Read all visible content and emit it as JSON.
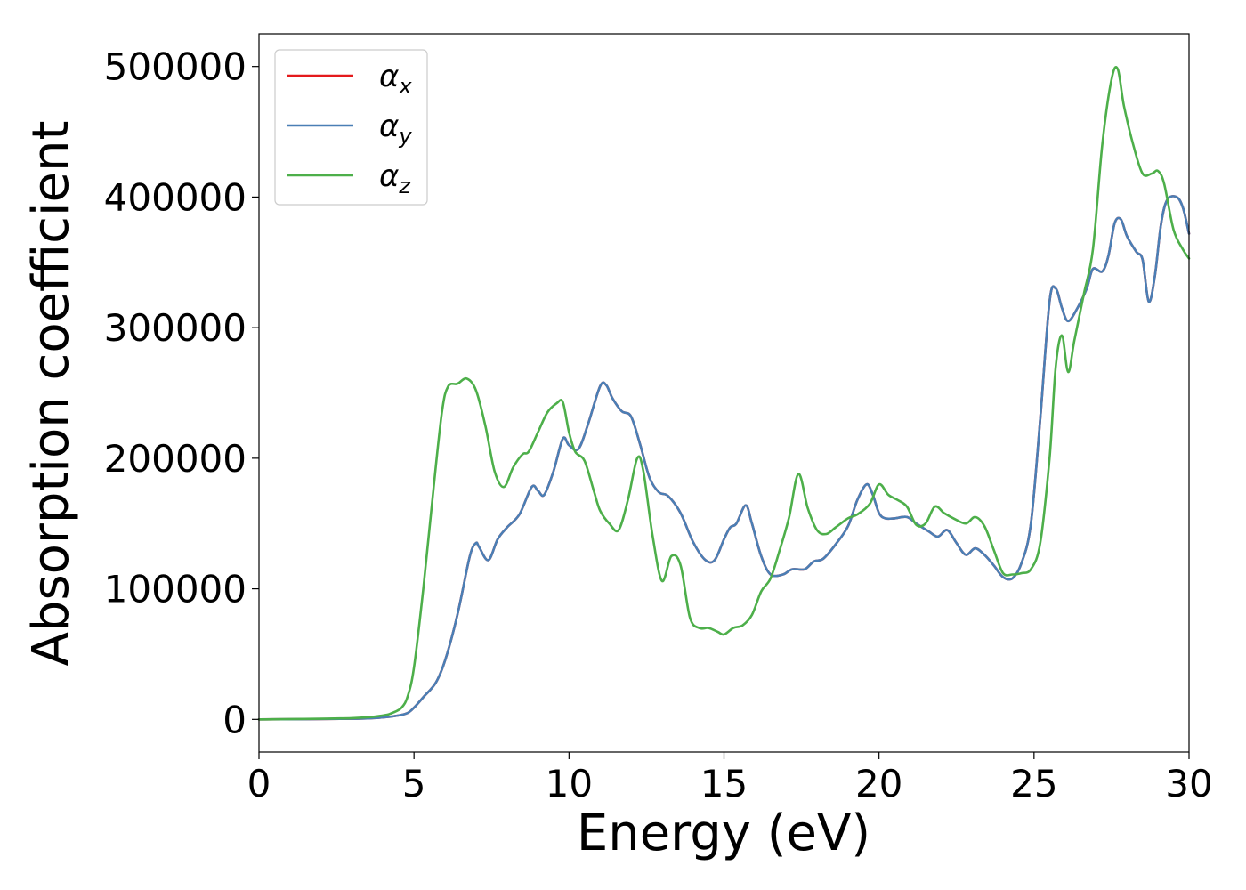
{
  "chart_data": {
    "type": "line",
    "xlabel": "Energy (eV)",
    "ylabel": "Absorption coefficient",
    "xlim": [
      0,
      30
    ],
    "ylim": [
      -25000,
      525000
    ],
    "xticks": [
      "0",
      "5",
      "10",
      "15",
      "20",
      "25",
      "30"
    ],
    "yticks": [
      "0",
      "100000",
      "200000",
      "300000",
      "400000",
      "500000"
    ],
    "grid": false,
    "legend_position": "top-left",
    "series": [
      {
        "name": "α",
        "subscript": "x",
        "color": "#e41a1c",
        "x": [
          0,
          3,
          4,
          4.5,
          4.8,
          5.0,
          5.3,
          5.7,
          6.0,
          6.4,
          6.8,
          7.0,
          7.1,
          7.4,
          7.7,
          8.0,
          8.4,
          8.8,
          9.0,
          9.2,
          9.5,
          9.8,
          10.0,
          10.3,
          10.6,
          11.0,
          11.2,
          11.4,
          11.7,
          12.0,
          12.3,
          12.6,
          12.9,
          13.2,
          13.6,
          14.0,
          14.4,
          14.7,
          15.0,
          15.2,
          15.4,
          15.7,
          15.9,
          16.2,
          16.5,
          16.9,
          17.2,
          17.6,
          17.9,
          18.2,
          18.6,
          19.0,
          19.3,
          19.6,
          19.8,
          20.0,
          20.2,
          20.5,
          20.9,
          21.2,
          21.6,
          21.9,
          22.2,
          22.5,
          22.8,
          23.1,
          23.4,
          23.7,
          24.0,
          24.3,
          24.6,
          24.9,
          25.2,
          25.5,
          25.7,
          25.9,
          26.1,
          26.4,
          26.7,
          26.9,
          27.2,
          27.4,
          27.6,
          27.8,
          28.0,
          28.3,
          28.5,
          28.7,
          28.9,
          29.1,
          29.3,
          29.6,
          29.8,
          30.0
        ],
        "values": [
          0,
          500,
          1500,
          3000,
          5000,
          9000,
          17000,
          28000,
          45000,
          80000,
          125000,
          135000,
          132000,
          122000,
          138000,
          147000,
          157000,
          178000,
          175000,
          172000,
          190000,
          215000,
          210000,
          207000,
          225000,
          255000,
          256000,
          246000,
          236000,
          232000,
          210000,
          185000,
          174000,
          171000,
          158000,
          136000,
          122000,
          122000,
          138000,
          147000,
          150000,
          164000,
          150000,
          125000,
          111000,
          111000,
          115000,
          115000,
          121000,
          123000,
          134000,
          148000,
          168000,
          180000,
          172000,
          158000,
          154000,
          154000,
          155000,
          150000,
          144000,
          140000,
          145000,
          135000,
          126000,
          131000,
          126000,
          118000,
          109000,
          108000,
          120000,
          150000,
          230000,
          320000,
          330000,
          315000,
          305000,
          315000,
          330000,
          345000,
          343000,
          355000,
          380000,
          383000,
          370000,
          358000,
          352000,
          320000,
          340000,
          380000,
          398000,
          400000,
          392000,
          372000
        ]
      },
      {
        "name": "α",
        "subscript": "y",
        "color": "#4a7fb5",
        "x": [
          0,
          3,
          4,
          4.5,
          4.8,
          5.0,
          5.3,
          5.7,
          6.0,
          6.4,
          6.8,
          7.0,
          7.1,
          7.4,
          7.7,
          8.0,
          8.4,
          8.8,
          9.0,
          9.2,
          9.5,
          9.8,
          10.0,
          10.3,
          10.6,
          11.0,
          11.2,
          11.4,
          11.7,
          12.0,
          12.3,
          12.6,
          12.9,
          13.2,
          13.6,
          14.0,
          14.4,
          14.7,
          15.0,
          15.2,
          15.4,
          15.7,
          15.9,
          16.2,
          16.5,
          16.9,
          17.2,
          17.6,
          17.9,
          18.2,
          18.6,
          19.0,
          19.3,
          19.6,
          19.8,
          20.0,
          20.2,
          20.5,
          20.9,
          21.2,
          21.6,
          21.9,
          22.2,
          22.5,
          22.8,
          23.1,
          23.4,
          23.7,
          24.0,
          24.3,
          24.6,
          24.9,
          25.2,
          25.5,
          25.7,
          25.9,
          26.1,
          26.4,
          26.7,
          26.9,
          27.2,
          27.4,
          27.6,
          27.8,
          28.0,
          28.3,
          28.5,
          28.7,
          28.9,
          29.1,
          29.3,
          29.6,
          29.8,
          30.0
        ],
        "values": [
          0,
          500,
          1500,
          3000,
          5000,
          9000,
          17000,
          28000,
          45000,
          80000,
          125000,
          135000,
          132000,
          122000,
          138000,
          147000,
          157000,
          178000,
          175000,
          172000,
          190000,
          215000,
          210000,
          207000,
          225000,
          255000,
          256000,
          246000,
          236000,
          232000,
          210000,
          185000,
          174000,
          171000,
          158000,
          136000,
          122000,
          122000,
          138000,
          147000,
          150000,
          164000,
          150000,
          125000,
          111000,
          111000,
          115000,
          115000,
          121000,
          123000,
          134000,
          148000,
          168000,
          180000,
          172000,
          158000,
          154000,
          154000,
          155000,
          150000,
          144000,
          140000,
          145000,
          135000,
          126000,
          131000,
          126000,
          118000,
          109000,
          108000,
          120000,
          150000,
          230000,
          320000,
          330000,
          315000,
          305000,
          315000,
          330000,
          345000,
          343000,
          355000,
          380000,
          383000,
          370000,
          358000,
          352000,
          320000,
          340000,
          380000,
          398000,
          400000,
          392000,
          372000
        ]
      },
      {
        "name": "α",
        "subscript": "z",
        "color": "#4daf4a",
        "x": [
          0,
          3,
          4,
          4.3,
          4.6,
          4.8,
          5.0,
          5.3,
          5.6,
          5.9,
          6.1,
          6.4,
          6.7,
          7.0,
          7.3,
          7.6,
          7.9,
          8.2,
          8.5,
          8.7,
          9.0,
          9.3,
          9.6,
          9.8,
          10.0,
          10.2,
          10.5,
          10.8,
          11.0,
          11.3,
          11.6,
          11.9,
          12.2,
          12.4,
          12.7,
          13.0,
          13.3,
          13.6,
          13.9,
          14.2,
          14.5,
          14.8,
          15.0,
          15.3,
          15.6,
          15.9,
          16.2,
          16.5,
          16.8,
          17.1,
          17.4,
          17.7,
          18.0,
          18.3,
          18.6,
          19.0,
          19.3,
          19.7,
          20.0,
          20.3,
          20.6,
          20.9,
          21.2,
          21.5,
          21.8,
          22.1,
          22.4,
          22.8,
          23.1,
          23.4,
          23.7,
          24.0,
          24.3,
          24.6,
          24.9,
          25.2,
          25.5,
          25.7,
          25.9,
          26.1,
          26.3,
          26.6,
          26.9,
          27.2,
          27.5,
          27.7,
          27.9,
          28.2,
          28.5,
          28.8,
          29.0,
          29.2,
          29.5,
          29.8,
          30.0
        ],
        "values": [
          0,
          1000,
          3000,
          5000,
          9000,
          18000,
          40000,
          100000,
          170000,
          235000,
          255000,
          257000,
          261000,
          252000,
          225000,
          190000,
          178000,
          193000,
          203000,
          205000,
          220000,
          235000,
          242000,
          243000,
          220000,
          205000,
          198000,
          175000,
          160000,
          150000,
          145000,
          168000,
          200000,
          190000,
          140000,
          106000,
          125000,
          118000,
          78000,
          70000,
          70000,
          67000,
          65000,
          70000,
          72000,
          80000,
          98000,
          108000,
          130000,
          155000,
          188000,
          162000,
          145000,
          142000,
          147000,
          154000,
          157000,
          165000,
          180000,
          172000,
          168000,
          163000,
          149000,
          150000,
          163000,
          158000,
          154000,
          150000,
          155000,
          148000,
          130000,
          112000,
          111000,
          112000,
          115000,
          135000,
          200000,
          270000,
          294000,
          266000,
          290000,
          325000,
          360000,
          440000,
          490000,
          498000,
          470000,
          440000,
          418000,
          418000,
          420000,
          410000,
          375000,
          360000,
          353000
        ]
      }
    ]
  }
}
